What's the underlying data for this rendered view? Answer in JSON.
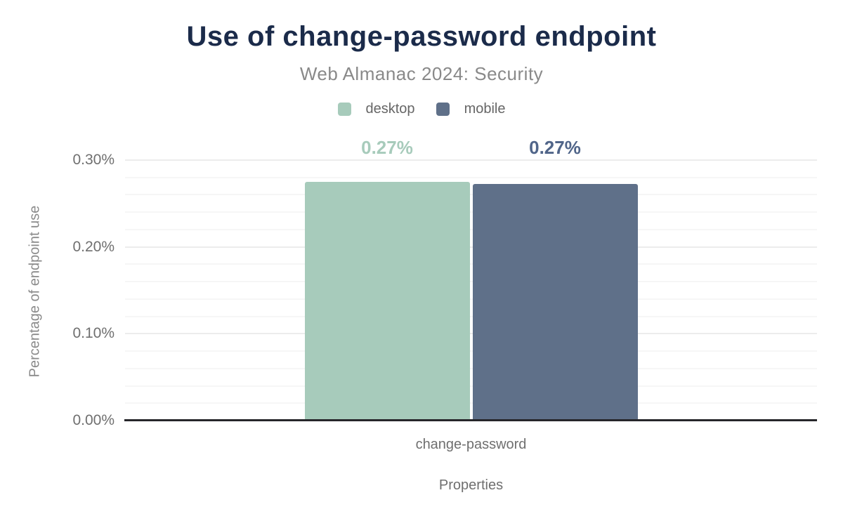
{
  "chart": {
    "title": "Use of change-password endpoint",
    "subtitle": "Web Almanac 2024: Security"
  },
  "chart_data": {
    "type": "bar",
    "title": "Use of change-password endpoint",
    "subtitle": "Web Almanac 2024: Security",
    "categories": [
      "change-password"
    ],
    "series": [
      {
        "name": "desktop",
        "values": [
          0.275
        ],
        "display_labels": [
          "0.27%"
        ],
        "color": "#a7cbbb",
        "label_color": "#a7cbbb"
      },
      {
        "name": "mobile",
        "values": [
          0.272
        ],
        "display_labels": [
          "0.27%"
        ],
        "color": "#5f7089",
        "label_color": "#506589"
      }
    ],
    "xlabel": "Properties",
    "ylabel": "Percentage of endpoint use",
    "ylim": [
      0,
      0.32
    ],
    "yticks": [
      {
        "value": 0.0,
        "label": "0.00%"
      },
      {
        "value": 0.1,
        "label": "0.10%"
      },
      {
        "value": 0.2,
        "label": "0.20%"
      },
      {
        "value": 0.3,
        "label": "0.30%"
      }
    ],
    "grid": {
      "minor_step": 0.02,
      "max": 0.3,
      "on": true
    },
    "legend_position": "top",
    "colors": {
      "title": "#1b2b4a",
      "subtitle": "#898989",
      "legend_text": "#666666",
      "axis_text": "#6f6f6f",
      "axis_line": "#26262a",
      "major_gridline": "#ececec",
      "minor_gridline": "#f6f6f6"
    }
  }
}
